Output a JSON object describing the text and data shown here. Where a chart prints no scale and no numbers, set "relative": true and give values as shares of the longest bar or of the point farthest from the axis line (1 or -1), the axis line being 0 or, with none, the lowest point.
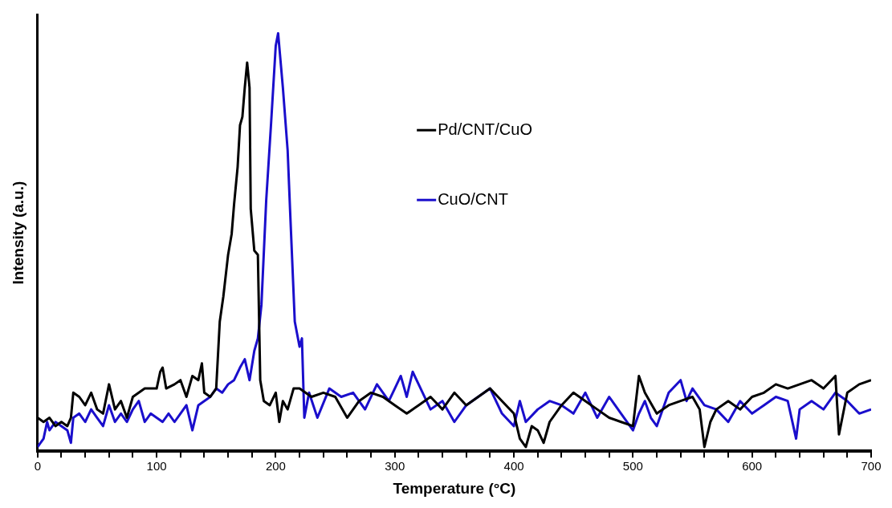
{
  "chart_data": {
    "type": "line",
    "xlabel": "Temperature (°C)",
    "ylabel": "Intensity (a.u.)",
    "relative": true,
    "legend": "top right",
    "grid": false,
    "marker": "none",
    "line_style": "solid",
    "xlim": [
      0,
      700
    ],
    "xticks": [
      0,
      {
        "value": 20,
        "label": null
      },
      {
        "value": 40,
        "label": null
      },
      {
        "value": 60,
        "label": null
      },
      {
        "value": 80,
        "label": null
      },
      100,
      {
        "value": 120,
        "label": null
      },
      {
        "value": 140,
        "label": null
      },
      {
        "value": 160,
        "label": null
      },
      {
        "value": 180,
        "label": null
      },
      200,
      {
        "value": 220,
        "label": null
      },
      {
        "value": 240,
        "label": null
      },
      {
        "value": 260,
        "label": null
      },
      {
        "value": 280,
        "label": null
      },
      300,
      {
        "value": 320,
        "label": null
      },
      {
        "value": 340,
        "label": null
      },
      {
        "value": 360,
        "label": null
      },
      {
        "value": 380,
        "label": null
      },
      400,
      {
        "value": 420,
        "label": null
      },
      {
        "value": 440,
        "label": null
      },
      {
        "value": 460,
        "label": null
      },
      {
        "value": 480,
        "label": null
      },
      500,
      {
        "value": 520,
        "label": null
      },
      {
        "value": 540,
        "label": null
      },
      {
        "value": 560,
        "label": null
      },
      {
        "value": 580,
        "label": null
      },
      600,
      {
        "value": 620,
        "label": null
      },
      {
        "value": 640,
        "label": null
      },
      {
        "value": 660,
        "label": null
      },
      {
        "value": 680,
        "label": null
      },
      700
    ],
    "series": [
      {
        "name": "Pd/CNT/CuO",
        "color": "#000000",
        "x": [
          0,
          5,
          10,
          15,
          20,
          25,
          28,
          30,
          35,
          40,
          45,
          50,
          55,
          60,
          65,
          70,
          75,
          80,
          90,
          100,
          103,
          105,
          108,
          115,
          120,
          125,
          130,
          135,
          138,
          140,
          145,
          150,
          153,
          156,
          160,
          163,
          165,
          168,
          170,
          172,
          174,
          176,
          178,
          179,
          182,
          185,
          187,
          190,
          195,
          200,
          203,
          206,
          210,
          215,
          220,
          230,
          240,
          250,
          260,
          270,
          280,
          290,
          300,
          310,
          320,
          330,
          340,
          350,
          360,
          370,
          380,
          390,
          400,
          405,
          410,
          415,
          420,
          425,
          430,
          440,
          450,
          460,
          470,
          480,
          490,
          500,
          505,
          510,
          520,
          530,
          540,
          550,
          556,
          560,
          565,
          570,
          580,
          590,
          600,
          610,
          620,
          630,
          640,
          650,
          660,
          670,
          673,
          680,
          690,
          700
        ],
        "values": [
          0.08,
          0.07,
          0.08,
          0.06,
          0.07,
          0.06,
          0.08,
          0.14,
          0.13,
          0.11,
          0.14,
          0.1,
          0.09,
          0.16,
          0.1,
          0.12,
          0.08,
          0.13,
          0.15,
          0.15,
          0.19,
          0.2,
          0.15,
          0.16,
          0.17,
          0.13,
          0.18,
          0.17,
          0.21,
          0.14,
          0.13,
          0.15,
          0.31,
          0.37,
          0.47,
          0.52,
          0.59,
          0.68,
          0.78,
          0.8,
          0.87,
          0.93,
          0.87,
          0.58,
          0.48,
          0.47,
          0.17,
          0.12,
          0.11,
          0.14,
          0.07,
          0.12,
          0.1,
          0.15,
          0.15,
          0.13,
          0.14,
          0.13,
          0.08,
          0.12,
          0.14,
          0.13,
          0.11,
          0.09,
          0.11,
          0.13,
          0.1,
          0.14,
          0.11,
          0.13,
          0.15,
          0.12,
          0.09,
          0.03,
          0.01,
          0.06,
          0.05,
          0.02,
          0.07,
          0.11,
          0.14,
          0.12,
          0.1,
          0.08,
          0.07,
          0.06,
          0.18,
          0.14,
          0.09,
          0.11,
          0.12,
          0.13,
          0.1,
          0.01,
          0.07,
          0.1,
          0.12,
          0.1,
          0.13,
          0.14,
          0.16,
          0.15,
          0.16,
          0.17,
          0.15,
          0.18,
          0.04,
          0.14,
          0.16,
          0.17
        ]
      },
      {
        "name": "CuO/CNT",
        "color": "#1a0ecc",
        "x": [
          0,
          5,
          8,
          10,
          15,
          20,
          25,
          28,
          30,
          35,
          40,
          45,
          50,
          55,
          60,
          65,
          70,
          75,
          80,
          85,
          90,
          95,
          100,
          105,
          110,
          115,
          120,
          125,
          130,
          135,
          140,
          145,
          150,
          155,
          160,
          165,
          170,
          174,
          178,
          182,
          185,
          188,
          192,
          196,
          200,
          202,
          206,
          210,
          212,
          216,
          220,
          222,
          224,
          228,
          235,
          245,
          255,
          265,
          275,
          285,
          295,
          300,
          305,
          310,
          315,
          320,
          330,
          340,
          350,
          360,
          370,
          380,
          390,
          400,
          405,
          410,
          420,
          430,
          440,
          450,
          460,
          470,
          480,
          490,
          500,
          505,
          510,
          515,
          520,
          530,
          540,
          545,
          550,
          560,
          570,
          580,
          590,
          600,
          610,
          620,
          630,
          637,
          640,
          650,
          660,
          670,
          680,
          690,
          700
        ],
        "values": [
          0.01,
          0.03,
          0.07,
          0.05,
          0.07,
          0.06,
          0.05,
          0.02,
          0.08,
          0.09,
          0.07,
          0.1,
          0.08,
          0.06,
          0.11,
          0.07,
          0.09,
          0.07,
          0.1,
          0.12,
          0.07,
          0.09,
          0.08,
          0.07,
          0.09,
          0.07,
          0.09,
          0.11,
          0.05,
          0.11,
          0.12,
          0.13,
          0.15,
          0.14,
          0.16,
          0.17,
          0.2,
          0.22,
          0.17,
          0.24,
          0.27,
          0.35,
          0.6,
          0.78,
          0.97,
          1,
          0.87,
          0.72,
          0.58,
          0.31,
          0.25,
          0.27,
          0.08,
          0.14,
          0.08,
          0.15,
          0.13,
          0.14,
          0.1,
          0.16,
          0.12,
          0.15,
          0.18,
          0.13,
          0.19,
          0.16,
          0.1,
          0.12,
          0.07,
          0.11,
          0.13,
          0.15,
          0.09,
          0.06,
          0.12,
          0.07,
          0.1,
          0.12,
          0.11,
          0.09,
          0.14,
          0.08,
          0.13,
          0.09,
          0.05,
          0.09,
          0.12,
          0.08,
          0.06,
          0.14,
          0.17,
          0.12,
          0.15,
          0.11,
          0.1,
          0.07,
          0.12,
          0.09,
          0.11,
          0.13,
          0.12,
          0.03,
          0.1,
          0.12,
          0.1,
          0.14,
          0.12,
          0.09,
          0.1
        ]
      }
    ]
  }
}
